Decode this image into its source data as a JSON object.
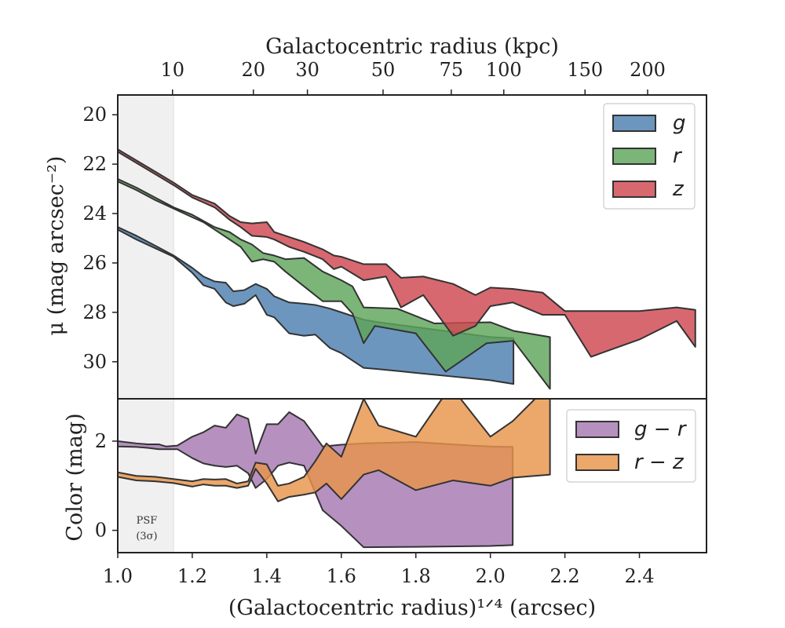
{
  "chart_data": [
    {
      "type": "area",
      "panel": "surface-brightness",
      "xlabel_top": "Galactocentric radius (kpc)",
      "top_ticks": [
        {
          "label": "10",
          "x": 1.147
        },
        {
          "label": "20",
          "x": 1.364
        },
        {
          "label": "30",
          "x": 1.509
        },
        {
          "label": "50",
          "x": 1.712
        },
        {
          "label": "75",
          "x": 1.895
        },
        {
          "label": "100",
          "x": 2.036
        },
        {
          "label": "150",
          "x": 2.254
        },
        {
          "label": "200",
          "x": 2.422
        }
      ],
      "ylabel": "μ (mag arcsec⁻²)",
      "ylim": [
        31.5,
        19.2
      ],
      "y_inverted": true,
      "yticks": [
        "20",
        "22",
        "24",
        "26",
        "28",
        "30"
      ],
      "legend": {
        "placement": "top-right",
        "entries": [
          "g",
          "r",
          "z"
        ]
      },
      "series": [
        {
          "name": "g",
          "color": "#4c7fb0",
          "upper": [
            [
              1.0,
              24.55
            ],
            [
              1.05,
              24.9
            ],
            [
              1.1,
              25.3
            ],
            [
              1.15,
              25.7
            ],
            [
              1.2,
              26.2
            ],
            [
              1.23,
              26.55
            ],
            [
              1.26,
              26.75
            ],
            [
              1.29,
              26.8
            ],
            [
              1.31,
              27.15
            ],
            [
              1.34,
              27.1
            ],
            [
              1.37,
              26.85
            ],
            [
              1.4,
              27.05
            ],
            [
              1.42,
              27.35
            ],
            [
              1.46,
              27.6
            ],
            [
              1.5,
              27.65
            ],
            [
              1.53,
              27.7
            ],
            [
              1.57,
              27.85
            ],
            [
              1.6,
              28.0
            ],
            [
              1.66,
              28.3
            ],
            [
              1.7,
              28.4
            ],
            [
              1.8,
              28.6
            ],
            [
              1.9,
              28.8
            ],
            [
              2.0,
              29.0
            ],
            [
              2.062,
              29.05
            ]
          ],
          "lower": [
            [
              1.0,
              24.65
            ],
            [
              1.05,
              25.05
            ],
            [
              1.1,
              25.4
            ],
            [
              1.15,
              25.75
            ],
            [
              1.2,
              26.4
            ],
            [
              1.23,
              26.9
            ],
            [
              1.26,
              27.05
            ],
            [
              1.29,
              27.6
            ],
            [
              1.31,
              27.75
            ],
            [
              1.34,
              27.65
            ],
            [
              1.37,
              27.3
            ],
            [
              1.4,
              28.1
            ],
            [
              1.42,
              28.2
            ],
            [
              1.46,
              28.85
            ],
            [
              1.5,
              28.95
            ],
            [
              1.53,
              28.9
            ],
            [
              1.57,
              29.45
            ],
            [
              1.6,
              29.65
            ],
            [
              1.66,
              30.25
            ],
            [
              1.7,
              30.3
            ],
            [
              1.8,
              30.45
            ],
            [
              1.9,
              30.6
            ],
            [
              2.0,
              30.75
            ],
            [
              2.062,
              30.9
            ]
          ]
        },
        {
          "name": "r",
          "color": "#5fa55a",
          "upper": [
            [
              1.0,
              22.6
            ],
            [
              1.05,
              22.95
            ],
            [
              1.1,
              23.35
            ],
            [
              1.15,
              23.75
            ],
            [
              1.2,
              24.05
            ],
            [
              1.23,
              24.3
            ],
            [
              1.26,
              24.55
            ],
            [
              1.3,
              24.75
            ],
            [
              1.33,
              25.05
            ],
            [
              1.36,
              25.25
            ],
            [
              1.39,
              25.6
            ],
            [
              1.42,
              25.7
            ],
            [
              1.45,
              25.85
            ],
            [
              1.5,
              25.8
            ],
            [
              1.55,
              26.35
            ],
            [
              1.6,
              26.7
            ],
            [
              1.63,
              26.95
            ],
            [
              1.66,
              27.8
            ],
            [
              1.75,
              27.85
            ],
            [
              1.85,
              28.45
            ],
            [
              2.0,
              28.4
            ],
            [
              2.062,
              28.75
            ],
            [
              2.16,
              29.0
            ]
          ],
          "lower": [
            [
              1.0,
              22.7
            ],
            [
              1.05,
              23.05
            ],
            [
              1.1,
              23.45
            ],
            [
              1.15,
              23.8
            ],
            [
              1.2,
              24.15
            ],
            [
              1.23,
              24.35
            ],
            [
              1.26,
              24.65
            ],
            [
              1.3,
              25.05
            ],
            [
              1.33,
              25.35
            ],
            [
              1.36,
              25.95
            ],
            [
              1.39,
              25.85
            ],
            [
              1.42,
              25.95
            ],
            [
              1.45,
              26.35
            ],
            [
              1.5,
              26.95
            ],
            [
              1.55,
              27.55
            ],
            [
              1.6,
              27.55
            ],
            [
              1.63,
              28.05
            ],
            [
              1.66,
              29.25
            ],
            [
              1.69,
              28.55
            ],
            [
              1.8,
              28.85
            ],
            [
              1.88,
              30.4
            ],
            [
              1.99,
              29.25
            ],
            [
              2.062,
              29.15
            ],
            [
              2.16,
              31.1
            ]
          ]
        },
        {
          "name": "z",
          "color": "#d0474f",
          "upper": [
            [
              1.0,
              21.4
            ],
            [
              1.05,
              21.85
            ],
            [
              1.1,
              22.3
            ],
            [
              1.15,
              22.75
            ],
            [
              1.2,
              23.25
            ],
            [
              1.26,
              23.6
            ],
            [
              1.3,
              24.1
            ],
            [
              1.33,
              24.35
            ],
            [
              1.36,
              24.4
            ],
            [
              1.4,
              24.35
            ],
            [
              1.42,
              24.75
            ],
            [
              1.46,
              24.95
            ],
            [
              1.5,
              25.15
            ],
            [
              1.55,
              25.45
            ],
            [
              1.58,
              25.7
            ],
            [
              1.6,
              25.75
            ],
            [
              1.66,
              26.05
            ],
            [
              1.72,
              26.05
            ],
            [
              1.76,
              26.6
            ],
            [
              1.82,
              26.55
            ],
            [
              1.9,
              26.85
            ],
            [
              1.96,
              27.3
            ],
            [
              2.0,
              27.0
            ],
            [
              2.06,
              27.05
            ],
            [
              2.14,
              27.2
            ],
            [
              2.2,
              27.95
            ],
            [
              2.27,
              27.95
            ],
            [
              2.4,
              27.95
            ],
            [
              2.5,
              27.8
            ],
            [
              2.55,
              27.9
            ]
          ],
          "lower": [
            [
              1.0,
              21.5
            ],
            [
              1.05,
              21.95
            ],
            [
              1.1,
              22.4
            ],
            [
              1.15,
              22.85
            ],
            [
              1.2,
              23.35
            ],
            [
              1.26,
              23.75
            ],
            [
              1.3,
              24.25
            ],
            [
              1.33,
              24.55
            ],
            [
              1.36,
              24.9
            ],
            [
              1.4,
              24.95
            ],
            [
              1.42,
              25.05
            ],
            [
              1.46,
              25.35
            ],
            [
              1.5,
              25.55
            ],
            [
              1.55,
              25.85
            ],
            [
              1.58,
              26.25
            ],
            [
              1.6,
              26.15
            ],
            [
              1.66,
              26.7
            ],
            [
              1.72,
              26.55
            ],
            [
              1.76,
              27.8
            ],
            [
              1.82,
              27.3
            ],
            [
              1.9,
              28.95
            ],
            [
              1.96,
              28.55
            ],
            [
              2.0,
              27.75
            ],
            [
              2.06,
              27.6
            ],
            [
              2.14,
              28.1
            ],
            [
              2.2,
              28.1
            ],
            [
              2.27,
              29.8
            ],
            [
              2.4,
              29.1
            ],
            [
              2.5,
              28.35
            ],
            [
              2.55,
              29.4
            ]
          ]
        }
      ]
    },
    {
      "type": "area",
      "panel": "color",
      "xlabel": "(Galactocentric radius)¹ᐟ⁴ (arcsec)",
      "xlim": [
        1.0,
        2.58
      ],
      "xticks": [
        "1.0",
        "1.2",
        "1.4",
        "1.6",
        "1.8",
        "2.0",
        "2.2",
        "2.4"
      ],
      "ylabel": "Color (mag)",
      "ylim": [
        -0.5,
        2.95
      ],
      "yticks": [
        "0",
        "2"
      ],
      "legend": {
        "placement": "top-right",
        "entries": [
          "g − r",
          "r − z"
        ]
      },
      "annotation": {
        "line1": "PSF",
        "line2": "(3σ)"
      },
      "psf_shade_x": [
        1.0,
        1.15
      ],
      "series": [
        {
          "name": "g − r",
          "color": "#a679b2",
          "upper": [
            [
              1.0,
              2.0
            ],
            [
              1.05,
              1.95
            ],
            [
              1.08,
              1.93
            ],
            [
              1.11,
              1.93
            ],
            [
              1.13,
              1.88
            ],
            [
              1.16,
              1.9
            ],
            [
              1.2,
              2.1
            ],
            [
              1.23,
              2.2
            ],
            [
              1.26,
              2.35
            ],
            [
              1.29,
              2.3
            ],
            [
              1.32,
              2.6
            ],
            [
              1.35,
              2.5
            ],
            [
              1.37,
              1.72
            ],
            [
              1.4,
              2.38
            ],
            [
              1.43,
              2.38
            ],
            [
              1.46,
              2.65
            ],
            [
              1.5,
              2.45
            ],
            [
              1.55,
              1.88
            ],
            [
              1.6,
              1.92
            ],
            [
              1.66,
              1.95
            ],
            [
              1.8,
              1.98
            ],
            [
              1.95,
              1.9
            ],
            [
              2.0,
              1.88
            ],
            [
              2.06,
              1.87
            ]
          ],
          "lower": [
            [
              1.0,
              1.88
            ],
            [
              1.05,
              1.87
            ],
            [
              1.08,
              1.85
            ],
            [
              1.11,
              1.82
            ],
            [
              1.13,
              1.82
            ],
            [
              1.16,
              1.82
            ],
            [
              1.2,
              1.62
            ],
            [
              1.23,
              1.5
            ],
            [
              1.26,
              1.45
            ],
            [
              1.29,
              1.42
            ],
            [
              1.32,
              1.45
            ],
            [
              1.35,
              1.28
            ],
            [
              1.37,
              0.95
            ],
            [
              1.4,
              1.15
            ],
            [
              1.43,
              1.45
            ],
            [
              1.46,
              1.52
            ],
            [
              1.5,
              1.45
            ],
            [
              1.55,
              0.45
            ],
            [
              1.6,
              0.1
            ],
            [
              1.66,
              -0.38
            ],
            [
              1.8,
              -0.37
            ],
            [
              2.0,
              -0.35
            ],
            [
              2.06,
              -0.33
            ]
          ]
        },
        {
          "name": "r − z",
          "color": "#e8944a",
          "upper": [
            [
              1.0,
              1.3
            ],
            [
              1.05,
              1.22
            ],
            [
              1.1,
              1.2
            ],
            [
              1.15,
              1.15
            ],
            [
              1.2,
              1.1
            ],
            [
              1.23,
              1.15
            ],
            [
              1.26,
              1.14
            ],
            [
              1.29,
              1.15
            ],
            [
              1.32,
              1.05
            ],
            [
              1.35,
              1.1
            ],
            [
              1.37,
              1.52
            ],
            [
              1.4,
              1.48
            ],
            [
              1.43,
              1.0
            ],
            [
              1.46,
              1.05
            ],
            [
              1.5,
              1.2
            ],
            [
              1.53,
              1.55
            ],
            [
              1.56,
              1.95
            ],
            [
              1.6,
              1.65
            ],
            [
              1.66,
              2.95
            ],
            [
              1.7,
              2.35
            ],
            [
              1.8,
              2.1
            ],
            [
              1.87,
              2.95
            ],
            [
              1.92,
              2.95
            ],
            [
              2.0,
              2.1
            ],
            [
              2.06,
              2.45
            ],
            [
              2.12,
              2.95
            ],
            [
              2.16,
              2.95
            ]
          ],
          "lower": [
            [
              1.0,
              1.2
            ],
            [
              1.05,
              1.12
            ],
            [
              1.1,
              1.1
            ],
            [
              1.15,
              1.06
            ],
            [
              1.2,
              0.98
            ],
            [
              1.23,
              1.03
            ],
            [
              1.26,
              1.0
            ],
            [
              1.29,
              1.0
            ],
            [
              1.32,
              0.95
            ],
            [
              1.35,
              1.0
            ],
            [
              1.37,
              1.38
            ],
            [
              1.4,
              1.05
            ],
            [
              1.43,
              0.65
            ],
            [
              1.46,
              0.75
            ],
            [
              1.5,
              0.8
            ],
            [
              1.53,
              0.85
            ],
            [
              1.56,
              1.05
            ],
            [
              1.6,
              0.7
            ],
            [
              1.66,
              1.25
            ],
            [
              1.7,
              1.35
            ],
            [
              1.8,
              0.9
            ],
            [
              1.9,
              1.12
            ],
            [
              2.0,
              1.0
            ],
            [
              2.06,
              1.18
            ],
            [
              2.16,
              1.25
            ]
          ]
        }
      ]
    }
  ]
}
